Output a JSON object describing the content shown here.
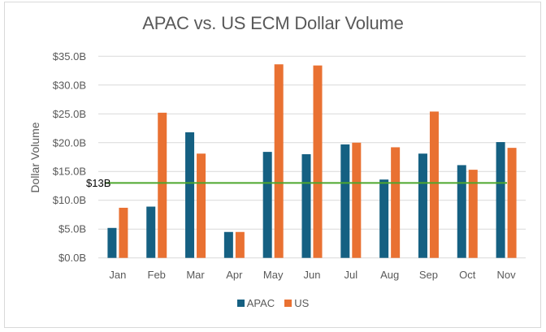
{
  "chart_data": {
    "type": "bar",
    "title": "APAC vs. US ECM Dollar Volume",
    "xlabel": "",
    "ylabel": "Dollar Volume",
    "ylim": [
      0,
      35
    ],
    "yticks": [
      0,
      5,
      10,
      15,
      20,
      25,
      30,
      35
    ],
    "ytick_labels": [
      "$0.0B",
      "$5.0B",
      "$10.0B",
      "$15.0B",
      "$20.0B",
      "$25.0B",
      "$30.0B",
      "$35.0B"
    ],
    "grid": true,
    "categories": [
      "Jan",
      "Feb",
      "Mar",
      "Apr",
      "May",
      "Jun",
      "Jul",
      "Aug",
      "Sep",
      "Oct",
      "Nov"
    ],
    "series": [
      {
        "name": "APAC",
        "color": "#156082",
        "values": [
          5.2,
          8.9,
          21.8,
          4.5,
          18.4,
          18.0,
          19.7,
          13.6,
          18.1,
          16.1,
          20.1
        ]
      },
      {
        "name": "US",
        "color": "#E97132",
        "values": [
          8.7,
          25.2,
          18.1,
          4.5,
          33.6,
          33.4,
          20.0,
          19.2,
          25.4,
          15.3,
          19.1
        ]
      }
    ],
    "reference_line": {
      "value": 13,
      "label": "$13B",
      "color": "#4EA72E"
    },
    "legend": {
      "position": "bottom",
      "entries": [
        "APAC",
        "US"
      ]
    }
  }
}
